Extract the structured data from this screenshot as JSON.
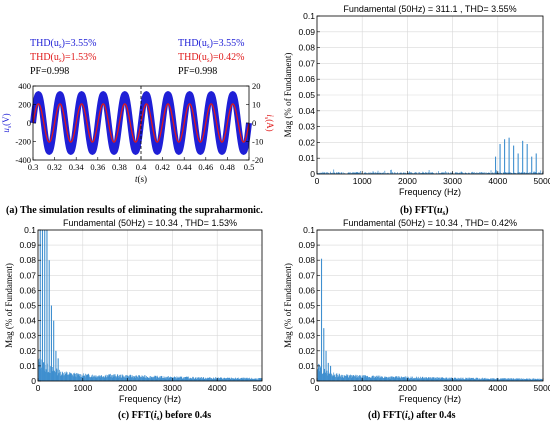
{
  "panel_a": {
    "thd_u_label": "THD(u",
    "thd_u_sub": "s",
    "thd_u_value": ")=3.55%",
    "before": {
      "thd_u": "3.55%",
      "thd_i": "1.53%",
      "pf": "PF=0.998"
    },
    "after": {
      "thd_u": "3.55%",
      "thd_i": "0.42%",
      "pf": "PF=0.998"
    },
    "thd_i_label": "THD(i",
    "thd_i_sub": "s",
    "caption": "(a) The simulation results of eliminating the supraharmonic.",
    "ylabel_left": "u",
    "ylabel_left_sub": "s",
    "ylabel_left_unit": "(V)",
    "ylabel_right": "i",
    "ylabel_right_sub": "s",
    "ylabel_right_unit": "(A)",
    "xlabel": "t",
    "xlabel_unit": "(s)",
    "colors": {
      "voltage": "#1f1fd6",
      "current": "#e01b1b"
    }
  },
  "chart_data": [
    {
      "id": "a",
      "type": "line",
      "x_ticks": [
        "0.3",
        "0.32",
        "0.34",
        "0.36",
        "0.38",
        "0.4",
        "0.42",
        "0.44",
        "0.46",
        "0.48",
        "0.5"
      ],
      "xlim": [
        0.3,
        0.5
      ],
      "ylim_left": [
        -400,
        400
      ],
      "y_ticks_left": [
        "400",
        "200",
        "0",
        "-200",
        "-400"
      ],
      "ylim_right": [
        -20,
        20
      ],
      "y_ticks_right": [
        "20",
        "10",
        "0",
        "-10",
        "-20"
      ],
      "series": [
        {
          "name": "u",
          "amplitude": 311.1,
          "frequency_hz": 50
        },
        {
          "name": "i",
          "amplitude": 10.34,
          "frequency_hz": 50
        }
      ]
    },
    {
      "id": "b",
      "type": "bar",
      "title": "Fundamental (50Hz) = 311.1 , THD= 3.55%",
      "xlabel": "Frequency (Hz)",
      "ylabel": "Mag (% of Fundament)",
      "xlim": [
        0,
        5000
      ],
      "ylim": [
        0,
        0.1
      ],
      "x_ticks": [
        "0",
        "1000",
        "2000",
        "3000",
        "4000",
        "5000"
      ],
      "y_ticks": [
        "0",
        "0.01",
        "0.02",
        "0.03",
        "0.04",
        "0.05",
        "0.06",
        "0.07",
        "0.08",
        "0.09",
        "0.1"
      ],
      "caption_prefix": "(b) FFT(",
      "caption_var": "u",
      "caption_sub": "s",
      "caption_suffix": ")",
      "peaks": [
        {
          "x": 3950,
          "y": 0.011
        },
        {
          "x": 4050,
          "y": 0.019
        },
        {
          "x": 4150,
          "y": 0.022
        },
        {
          "x": 4250,
          "y": 0.023
        },
        {
          "x": 4350,
          "y": 0.018
        },
        {
          "x": 4450,
          "y": 0.013
        },
        {
          "x": 4550,
          "y": 0.021
        },
        {
          "x": 4650,
          "y": 0.019
        },
        {
          "x": 4750,
          "y": 0.011
        },
        {
          "x": 4850,
          "y": 0.013
        }
      ]
    },
    {
      "id": "c",
      "type": "bar",
      "title": "Fundamental (50Hz) = 10.34 , THD= 1.53%",
      "xlabel": "Frequency (Hz)",
      "ylabel": "Mag (% of Fundament)",
      "xlim": [
        0,
        5000
      ],
      "ylim": [
        0,
        0.1
      ],
      "x_ticks": [
        "0",
        "1000",
        "2000",
        "3000",
        "4000",
        "5000"
      ],
      "y_ticks": [
        "0",
        "0.01",
        "0.02",
        "0.03",
        "0.04",
        "0.05",
        "0.06",
        "0.07",
        "0.08",
        "0.09",
        "0.1"
      ],
      "caption_prefix": "(c) FFT(",
      "caption_var": "i",
      "caption_sub": "s",
      "caption_suffix": ")  before 0.4s",
      "peaks": [
        {
          "x": 50,
          "y": 0.1
        },
        {
          "x": 100,
          "y": 0.1
        },
        {
          "x": 150,
          "y": 0.1
        },
        {
          "x": 200,
          "y": 0.1
        },
        {
          "x": 250,
          "y": 0.08
        },
        {
          "x": 300,
          "y": 0.05
        },
        {
          "x": 350,
          "y": 0.04
        },
        {
          "x": 400,
          "y": 0.02
        },
        {
          "x": 450,
          "y": 0.015
        }
      ]
    },
    {
      "id": "d",
      "type": "bar",
      "title": "Fundamental (50Hz) = 10.34 , THD= 0.42%",
      "xlabel": "Frequency (Hz)",
      "ylabel": "Mag (% of Fundament)",
      "xlim": [
        0,
        5000
      ],
      "ylim": [
        0,
        0.1
      ],
      "x_ticks": [
        "0",
        "1000",
        "2000",
        "3000",
        "4000",
        "5000"
      ],
      "y_ticks": [
        "0",
        "0.01",
        "0.02",
        "0.03",
        "0.04",
        "0.05",
        "0.06",
        "0.07",
        "0.08",
        "0.09",
        "0.1"
      ],
      "caption_prefix": "(d) FFT(",
      "caption_var": "i",
      "caption_sub": "s",
      "caption_suffix": ")  after 0.4s",
      "peaks": [
        {
          "x": 100,
          "y": 0.081
        },
        {
          "x": 150,
          "y": 0.035
        },
        {
          "x": 200,
          "y": 0.02
        },
        {
          "x": 250,
          "y": 0.012
        },
        {
          "x": 300,
          "y": 0.01
        }
      ]
    }
  ],
  "colors": {
    "bar": "#3f8fcf",
    "grid": "#d9d9d9"
  }
}
